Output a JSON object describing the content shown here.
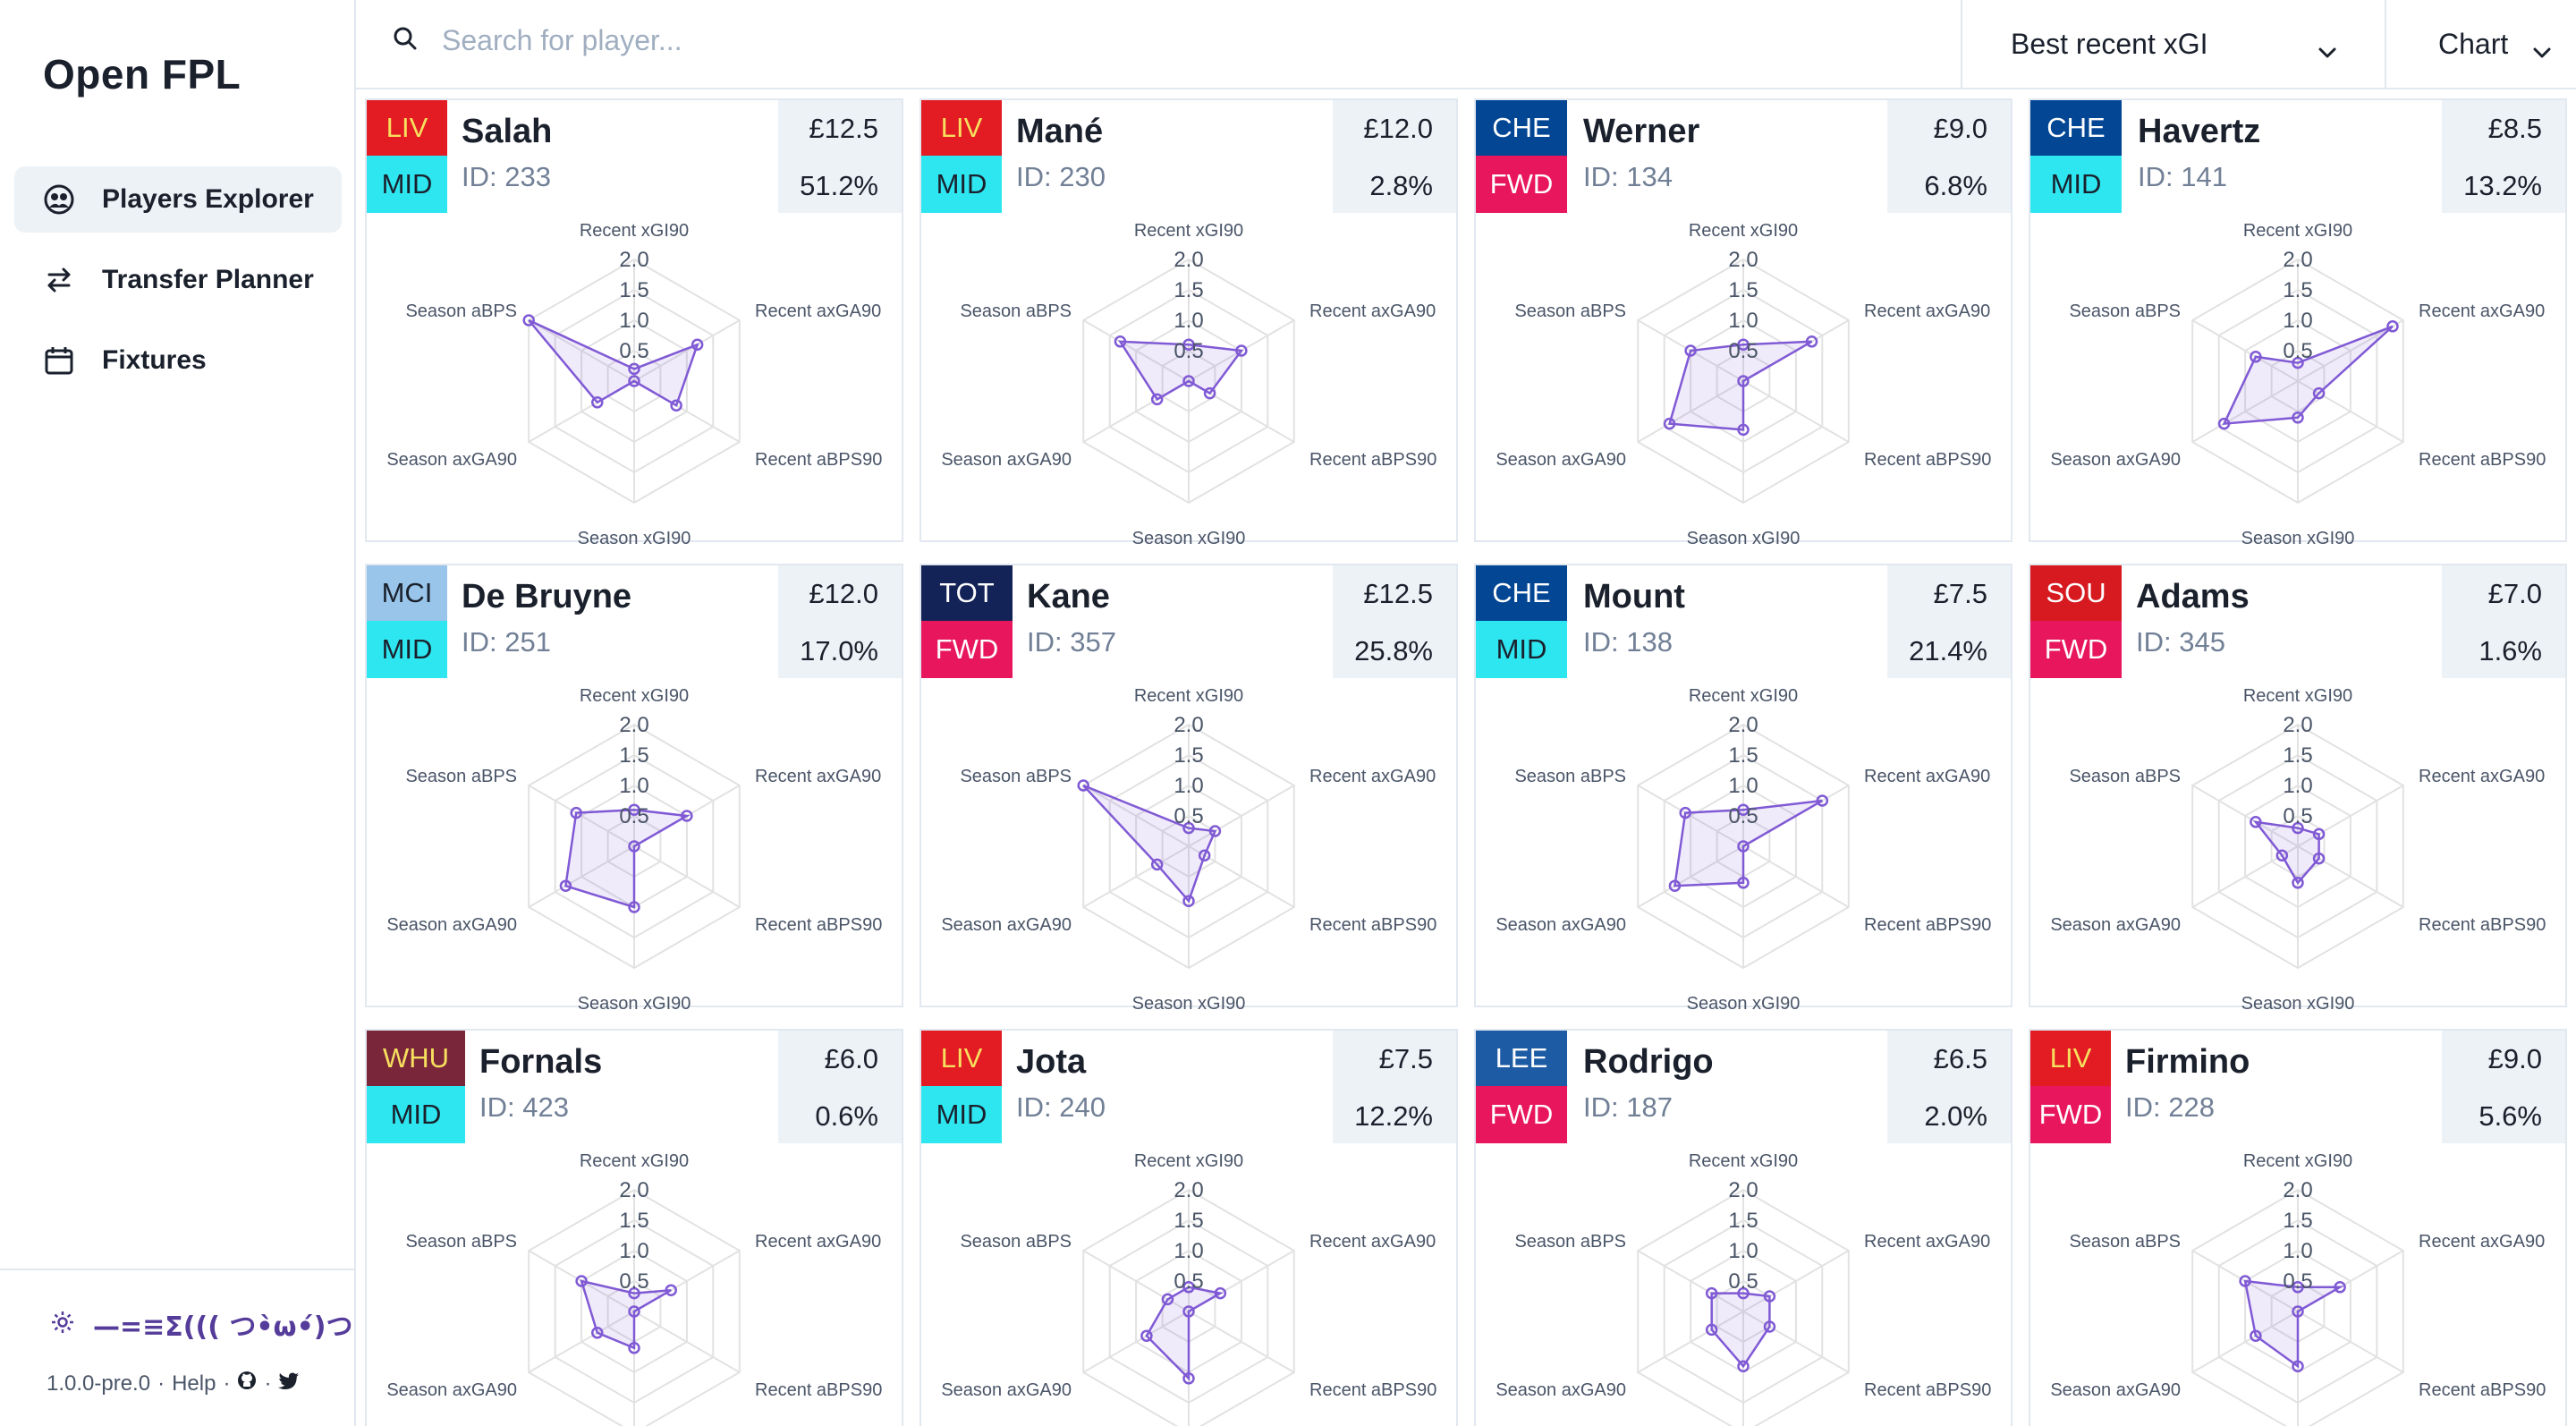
{
  "app": {
    "brand": "Open FPL"
  },
  "sidebar": {
    "items": [
      {
        "label": "Players Explorer",
        "icon": "users-icon",
        "active": true
      },
      {
        "label": "Transfer Planner",
        "icon": "arrows-swap-icon",
        "active": false
      },
      {
        "label": "Fixtures",
        "icon": "calendar-icon",
        "active": false
      }
    ],
    "footer": {
      "kaomoji": "—=≡Σ((( つ•̀ω•́)つ",
      "version": "1.0.0-pre.0",
      "help": "Help",
      "sep": "·"
    }
  },
  "toolbar": {
    "search_placeholder": "Search for player...",
    "sort_value": "Best recent xGI",
    "view_value": "Chart"
  },
  "radar_axes": [
    "Recent xGI90",
    "Recent axGA90",
    "Recent aBPS90",
    "Season xGI90",
    "Season axGA90",
    "Season aBPS"
  ],
  "radar_ticks": [
    "0.5",
    "1.0",
    "1.5",
    "2.0"
  ],
  "colors": {
    "accent": "#805ad5",
    "MID": "#2de6f0",
    "FWD": "#e8175d",
    "LIV": "#e31b23",
    "CHE": "#034694",
    "MCI": "#98c5e9",
    "TOT": "#132257",
    "SOU": "#d71920",
    "WHU": "#7a263a",
    "LEE": "#1d5ba4"
  },
  "players": [
    {
      "team": "LIV",
      "position": "MID",
      "name": "Salah",
      "id": "ID: 233",
      "price": "£12.5",
      "ownership": "51.2%",
      "stats": [
        0.2,
        1.2,
        0.8,
        0.0,
        0.7,
        2.0
      ]
    },
    {
      "team": "LIV",
      "position": "MID",
      "name": "Mané",
      "id": "ID: 230",
      "price": "£12.0",
      "ownership": "2.8%",
      "stats": [
        0.6,
        1.0,
        0.4,
        0.0,
        0.6,
        1.3
      ]
    },
    {
      "team": "CHE",
      "position": "FWD",
      "name": "Werner",
      "id": "ID: 134",
      "price": "£9.0",
      "ownership": "6.8%",
      "stats": [
        0.6,
        1.3,
        0.0,
        0.8,
        1.4,
        1.0
      ]
    },
    {
      "team": "CHE",
      "position": "MID",
      "name": "Havertz",
      "id": "ID: 141",
      "price": "£8.5",
      "ownership": "13.2%",
      "stats": [
        0.3,
        1.8,
        0.4,
        0.6,
        1.4,
        0.8
      ]
    },
    {
      "team": "MCI",
      "position": "MID",
      "name": "De Bruyne",
      "id": "ID: 251",
      "price": "£12.0",
      "ownership": "17.0%",
      "stats": [
        0.6,
        1.0,
        0.0,
        1.0,
        1.3,
        1.1
      ]
    },
    {
      "team": "TOT",
      "position": "FWD",
      "name": "Kane",
      "id": "ID: 357",
      "price": "£12.5",
      "ownership": "25.8%",
      "stats": [
        0.3,
        0.5,
        0.3,
        0.9,
        0.6,
        2.0
      ]
    },
    {
      "team": "CHE",
      "position": "MID",
      "name": "Mount",
      "id": "ID: 138",
      "price": "£7.5",
      "ownership": "21.4%",
      "stats": [
        0.6,
        1.5,
        0.0,
        0.6,
        1.3,
        1.1
      ]
    },
    {
      "team": "SOU",
      "position": "FWD",
      "name": "Adams",
      "id": "ID: 345",
      "price": "£7.0",
      "ownership": "1.6%",
      "stats": [
        0.3,
        0.4,
        0.4,
        0.6,
        0.3,
        0.8
      ]
    },
    {
      "team": "WHU",
      "position": "MID",
      "name": "Fornals",
      "id": "ID: 423",
      "price": "£6.0",
      "ownership": "0.6%",
      "stats": [
        0.3,
        0.7,
        0.0,
        0.6,
        0.7,
        1.0
      ]
    },
    {
      "team": "LIV",
      "position": "MID",
      "name": "Jota",
      "id": "ID: 240",
      "price": "£7.5",
      "ownership": "12.2%",
      "stats": [
        0.4,
        0.6,
        0.0,
        1.1,
        0.8,
        0.4
      ]
    },
    {
      "team": "LEE",
      "position": "FWD",
      "name": "Rodrigo",
      "id": "ID: 187",
      "price": "£6.5",
      "ownership": "2.0%",
      "stats": [
        0.3,
        0.5,
        0.5,
        0.9,
        0.6,
        0.6
      ]
    },
    {
      "team": "LIV",
      "position": "FWD",
      "name": "Firmino",
      "id": "ID: 228",
      "price": "£9.0",
      "ownership": "5.6%",
      "stats": [
        0.4,
        0.8,
        0.0,
        0.9,
        0.8,
        1.0
      ]
    }
  ]
}
